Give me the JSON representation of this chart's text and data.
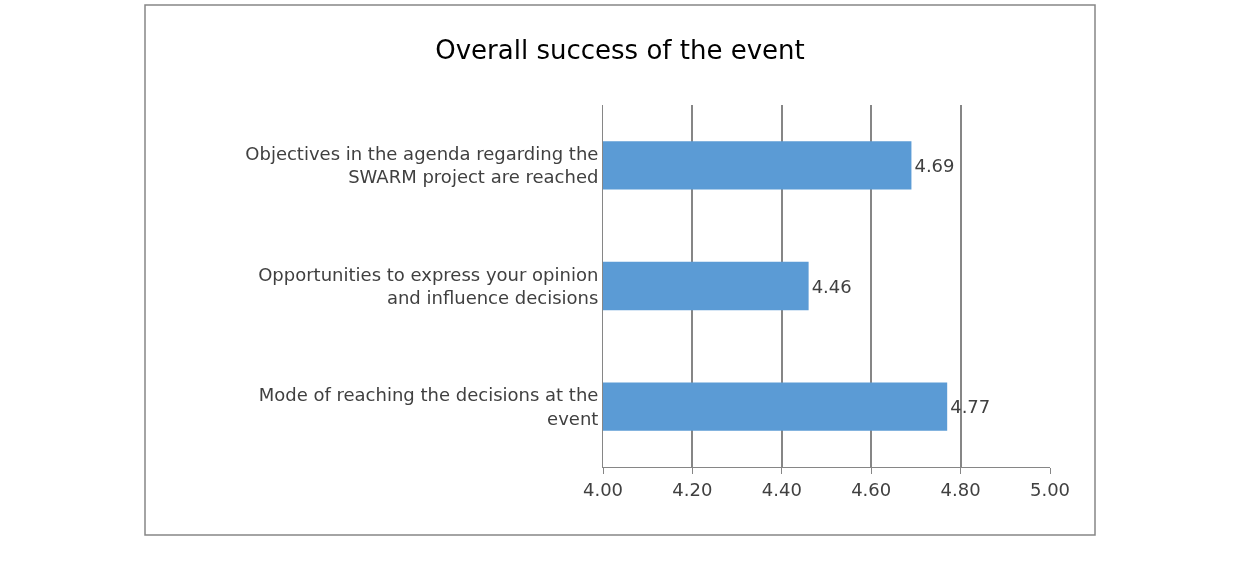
{
  "chart_data": {
    "type": "bar",
    "orientation": "horizontal",
    "title": "Overall success of the event",
    "categories": [
      "Objectives in the agenda regarding the SWARM project are reached",
      "Opportunities to express your opinion and influence decisions",
      "Mode of reaching the decisions at the event"
    ],
    "values": [
      4.69,
      4.46,
      4.77
    ],
    "color": "#5b9bd5",
    "data_labels": true,
    "xlim": [
      4.0,
      5.0
    ],
    "xticks": [
      {
        "value": 4.0,
        "label": "4.00"
      },
      {
        "value": 4.2,
        "label": "4.20"
      },
      {
        "value": 4.4,
        "label": "4.40"
      },
      {
        "value": 4.6,
        "label": "4.60"
      },
      {
        "value": 4.8,
        "label": "4.80"
      },
      {
        "value": 5.0,
        "label": "5.00"
      }
    ],
    "grid": "x"
  }
}
